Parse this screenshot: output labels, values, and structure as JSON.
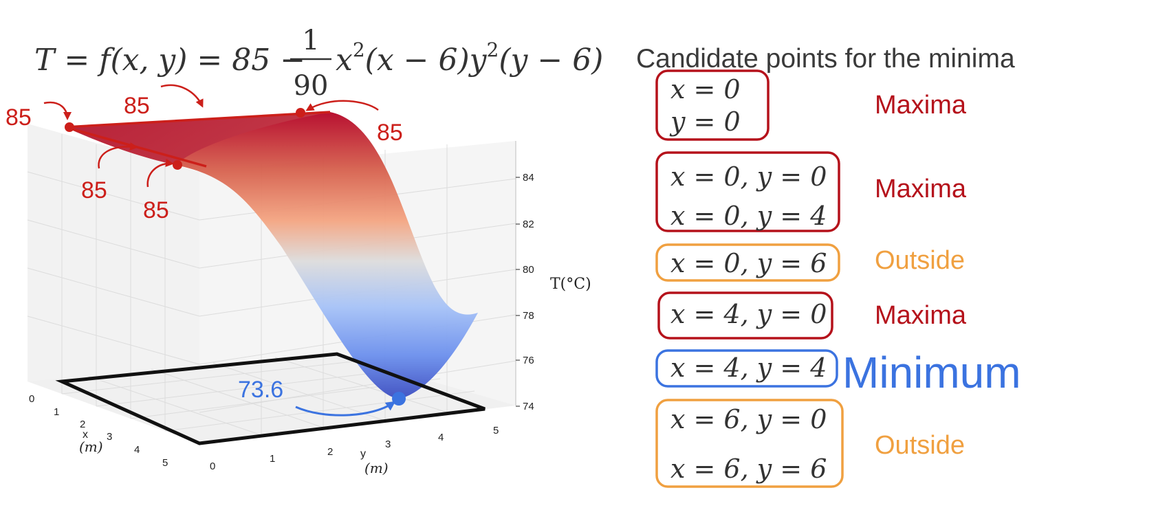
{
  "equation": {
    "lhs": "T = f(x, y) = 85 −",
    "frac_num": "1",
    "frac_den": "90",
    "rhs_a": "x",
    "rhs_b": "2",
    "rhs_c": "(x − 6)y",
    "rhs_d": "2",
    "rhs_e": "(y − 6)"
  },
  "plot": {
    "z_axis_label": "T(°C)",
    "x_axis_label": "x",
    "x_axis_unit": "(m)",
    "y_axis_label": "y",
    "y_axis_unit": "(m)",
    "z_ticks": [
      "84",
      "82",
      "80",
      "78",
      "76",
      "74"
    ],
    "x_ticks": [
      "0",
      "1",
      "2",
      "3",
      "4",
      "5"
    ],
    "y_ticks": [
      "0",
      "1",
      "2",
      "3",
      "4",
      "5"
    ],
    "annotations": [
      "85",
      "85",
      "85",
      "85",
      "85"
    ],
    "minimum_label": "73.6",
    "colors": {
      "max": "#cc1f1a",
      "min": "#3b73e0",
      "frame": "#111111"
    }
  },
  "candidates": {
    "title": "Candidate points for the minima",
    "groups": [
      {
        "lines": [
          "x = 0",
          "y = 0"
        ],
        "label": "Maxima",
        "color": "#b5121b"
      },
      {
        "lines": [
          "x = 0, y = 0",
          "x = 0, y = 4"
        ],
        "label": "Maxima",
        "color": "#b5121b"
      },
      {
        "lines": [
          "x = 0, y = 6"
        ],
        "label": "Outside",
        "color": "#f0a040"
      },
      {
        "lines": [
          "x = 4, y = 0"
        ],
        "label": "Maxima",
        "color": "#b5121b"
      },
      {
        "lines": [
          "x = 4, y = 4"
        ],
        "label": "Minimum",
        "color": "#3b73e0"
      },
      {
        "lines": [
          "x = 6, y = 0",
          "x = 6, y = 6"
        ],
        "label": "Outside",
        "color": "#f0a040"
      }
    ]
  }
}
